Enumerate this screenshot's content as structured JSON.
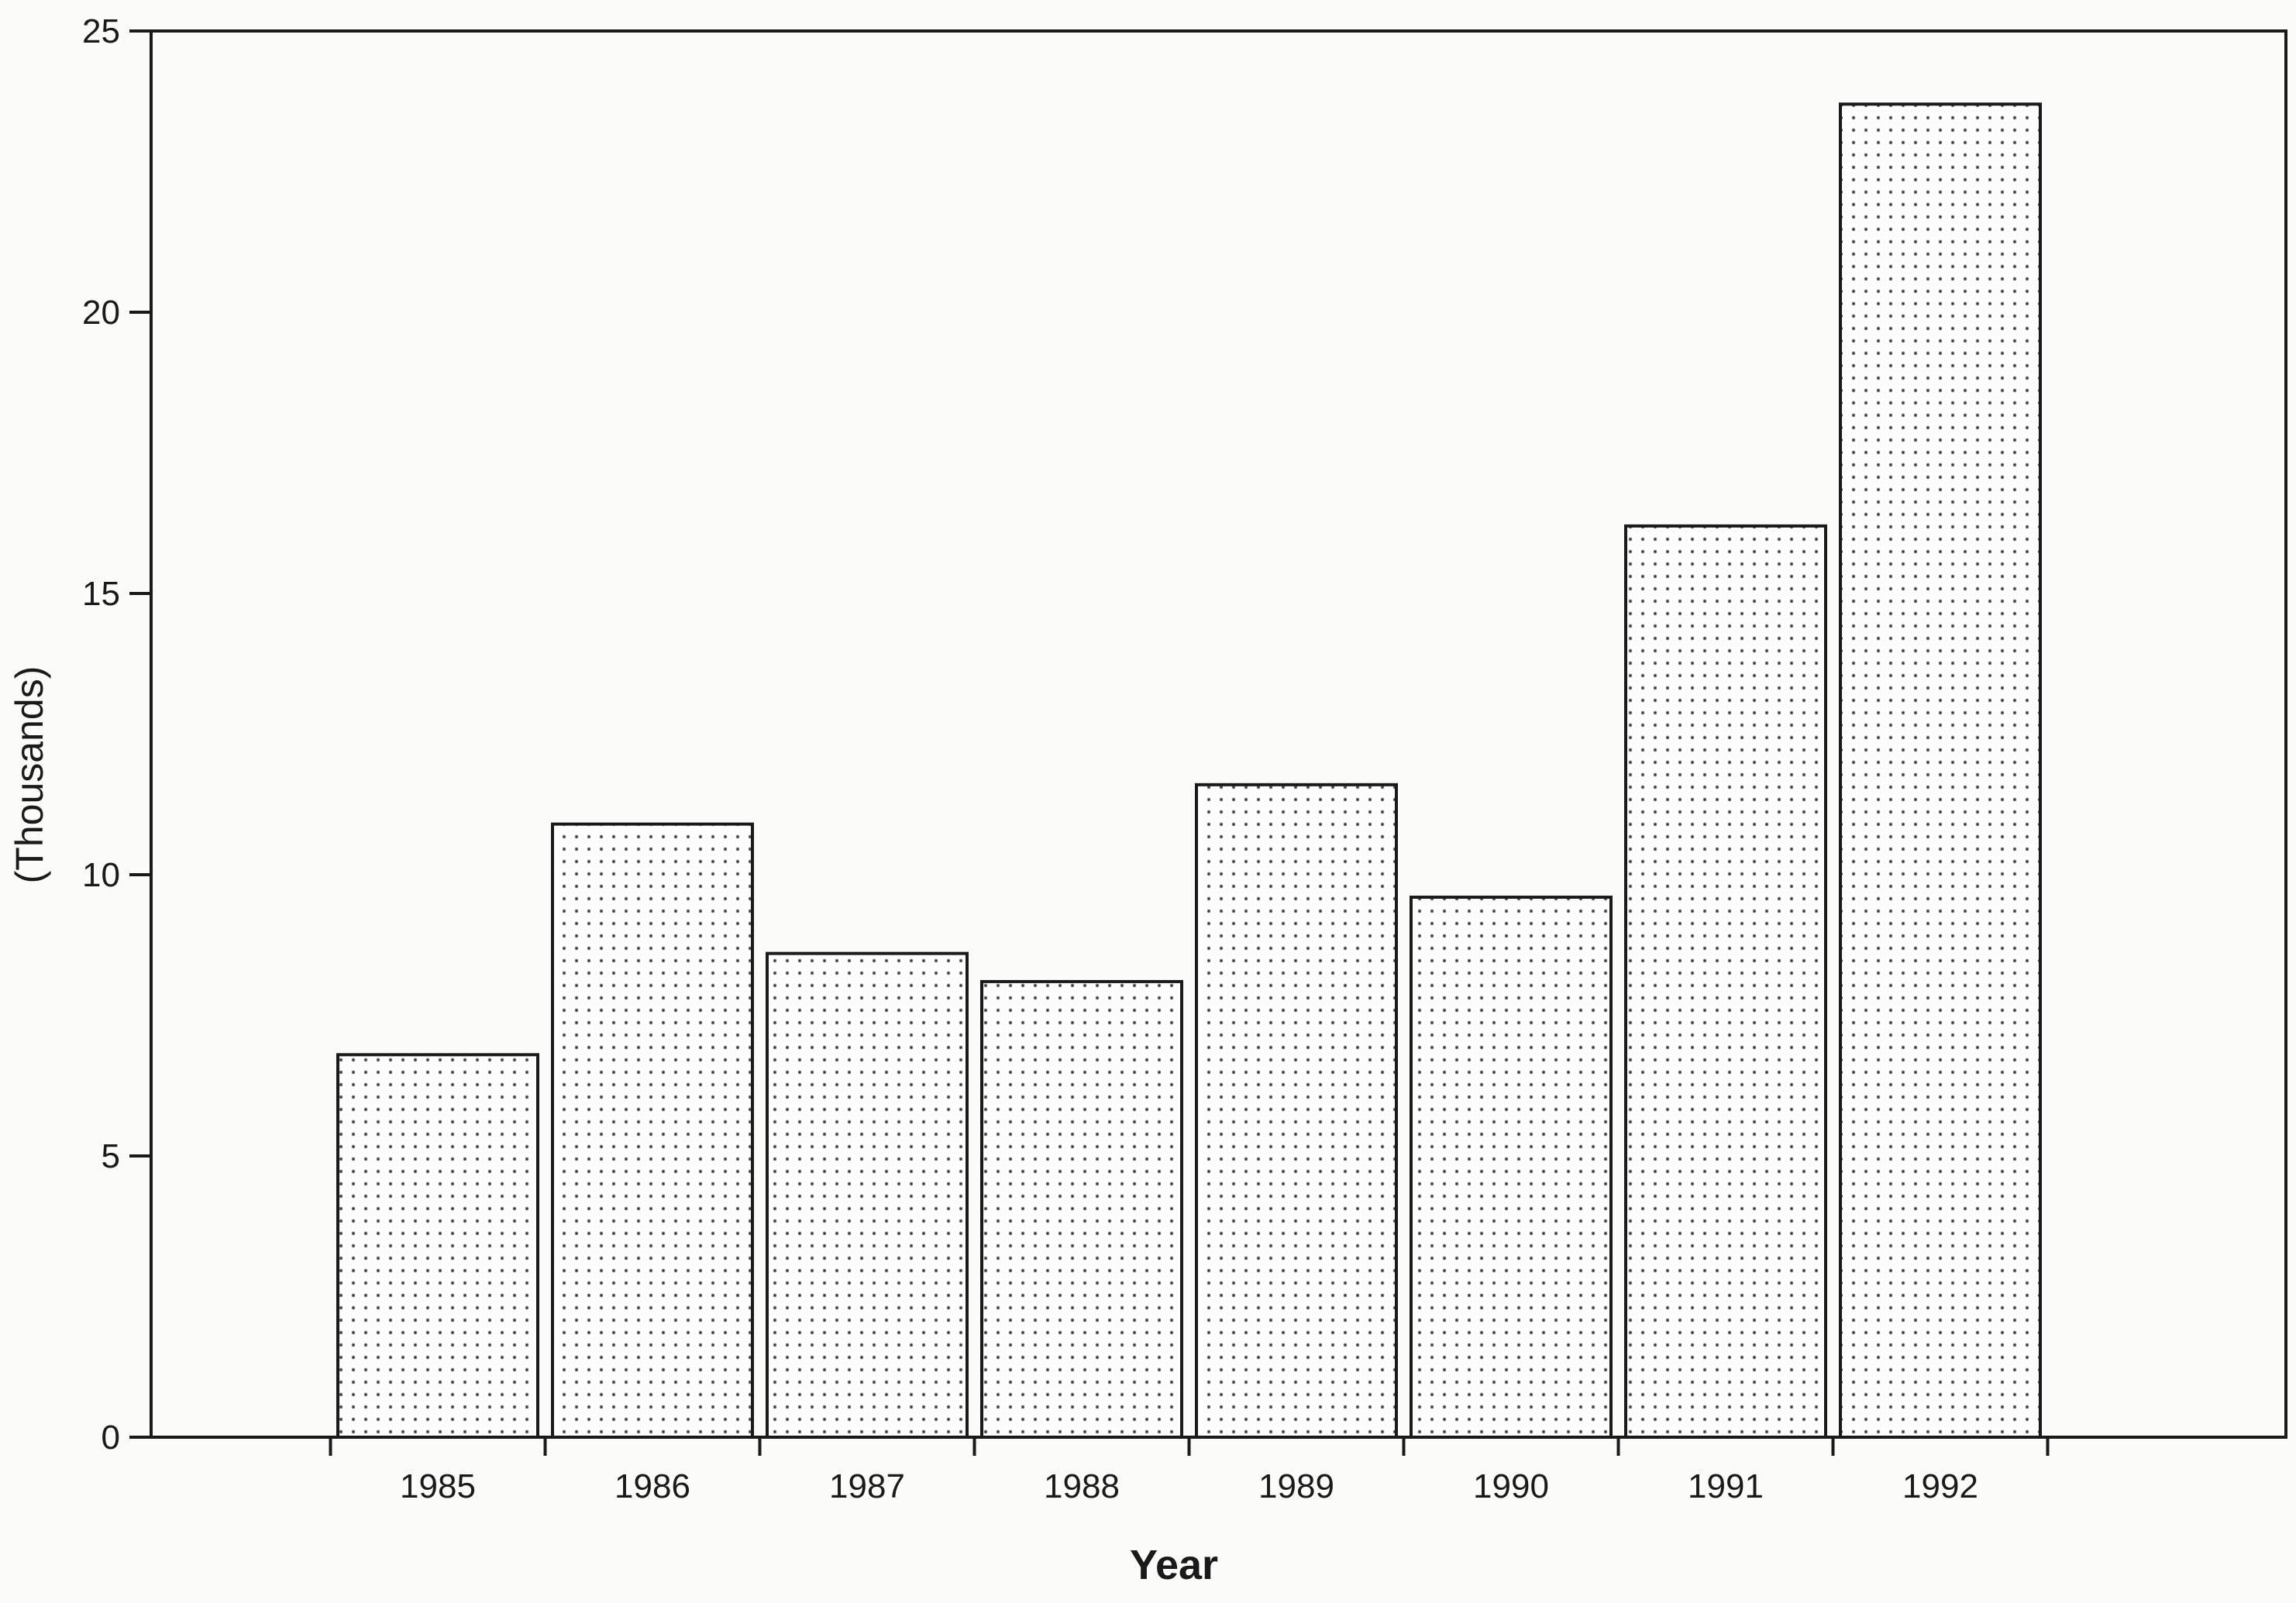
{
  "chart_data": {
    "type": "bar",
    "title": "",
    "xlabel": "Year",
    "ylabel": "(Thousands)",
    "categories": [
      "1985",
      "1986",
      "1987",
      "1988",
      "1989",
      "1990",
      "1991",
      "1992"
    ],
    "values": [
      6.8,
      10.9,
      8.6,
      8.1,
      11.6,
      9.6,
      16.2,
      23.7
    ],
    "ylim": [
      0,
      25
    ],
    "yticks": [
      0,
      5,
      10,
      15,
      20,
      25
    ],
    "grid": false,
    "legend": "none",
    "bar_fill": "dotted pattern",
    "colors": {
      "bar_fill": "#ffffff",
      "bar_dots": "#555555",
      "outline": "#1a1a1a"
    }
  }
}
